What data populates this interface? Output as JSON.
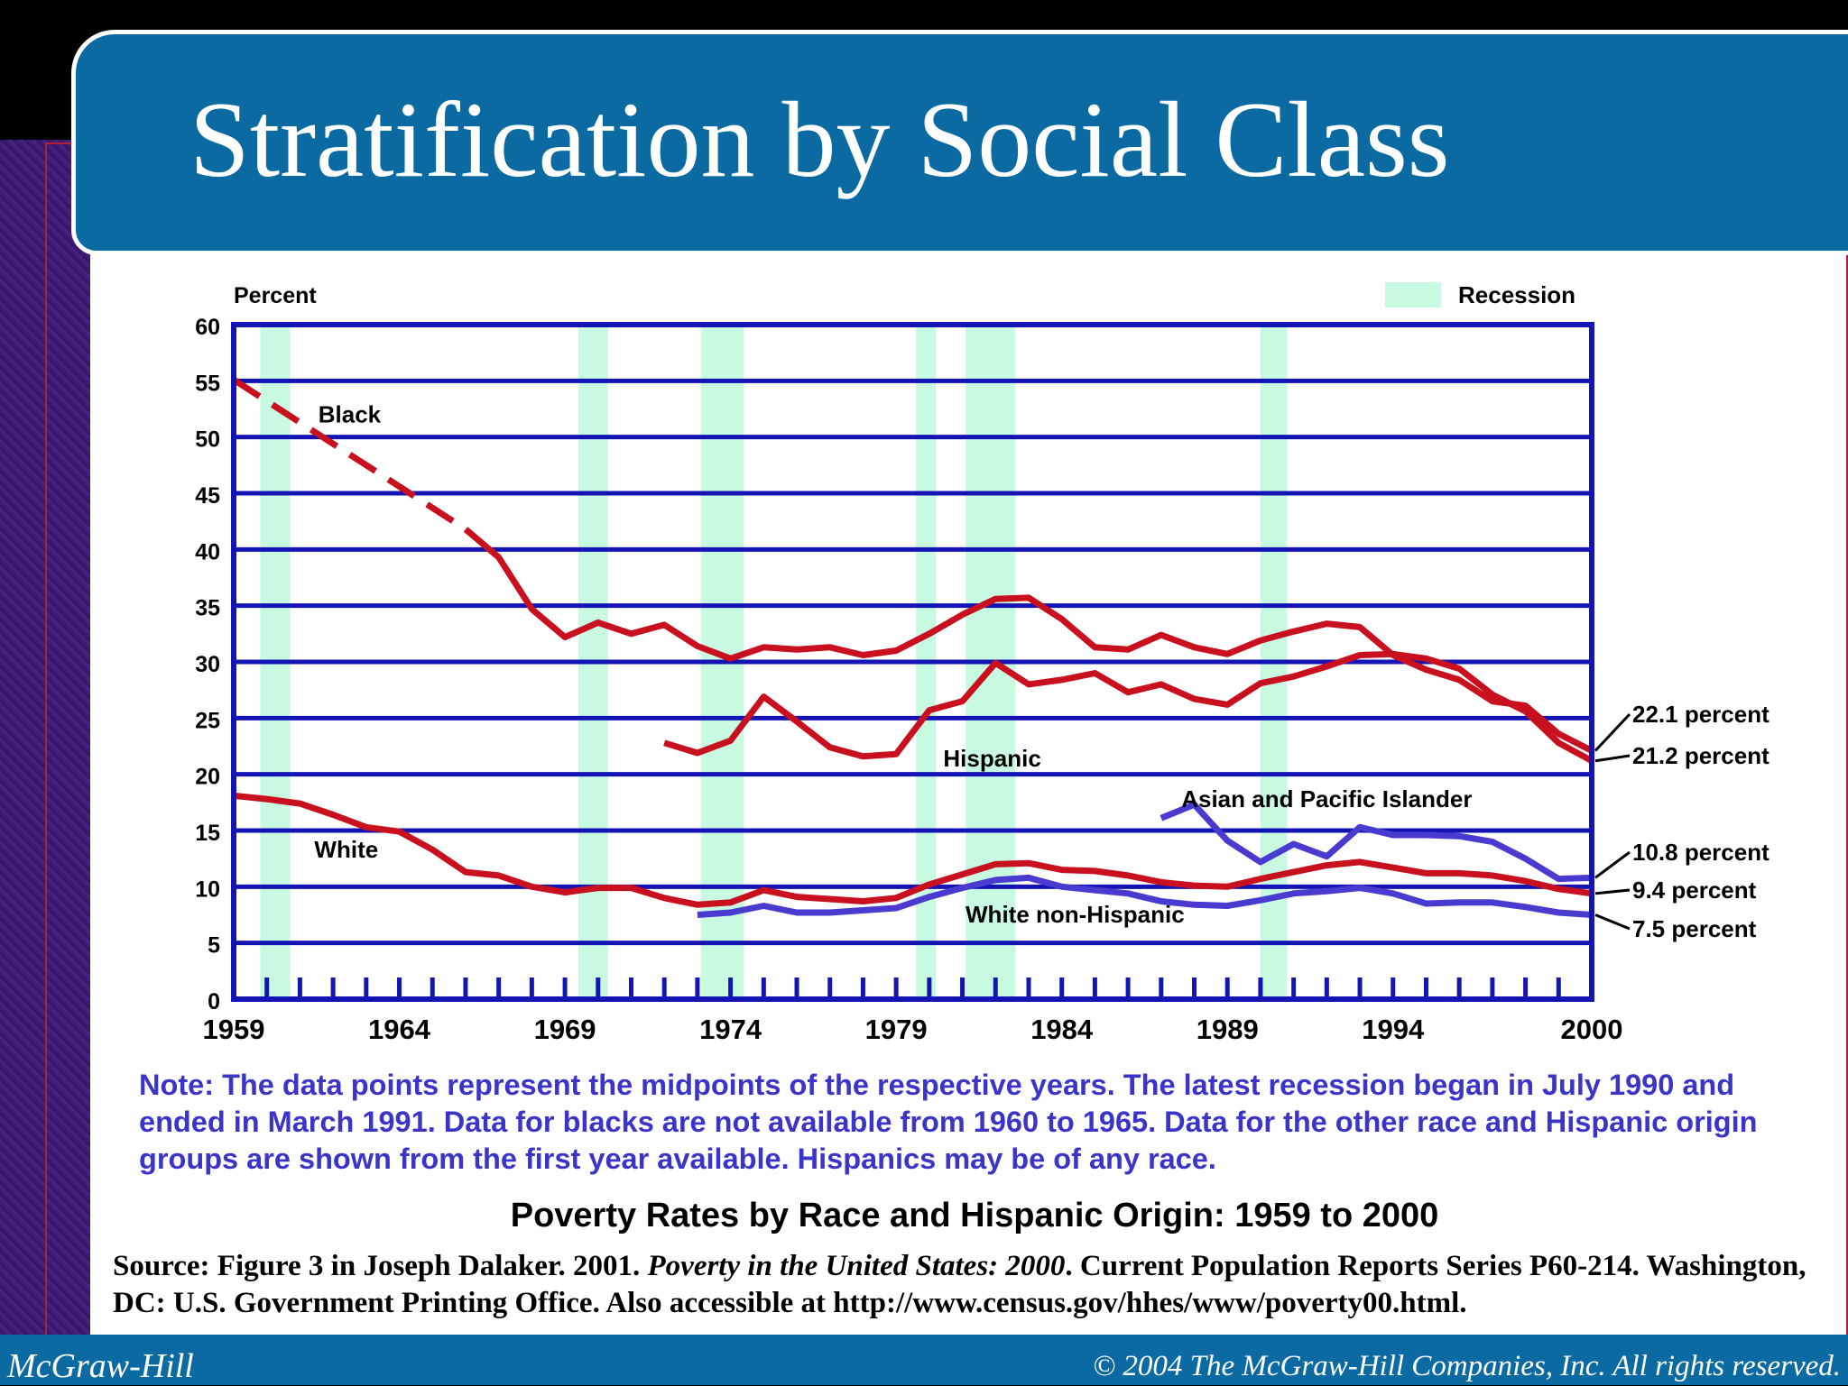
{
  "slide": {
    "title": "Stratification by Social Class",
    "footer_left": "McGraw-Hill",
    "footer_right": "© 2004 The McGraw-Hill Companies, Inc. All rights reserved."
  },
  "note": "Note: The data points represent the midpoints of the respective years. The latest recession began in July 1990 and ended in March 1991. Data for blacks are not available from 1960 to 1965. Data for the other race and Hispanic origin groups are shown from the first year available. Hispanics may be of any race.",
  "source": {
    "prefix": "Source: Figure 3 in Joseph Dalaker. 2001. ",
    "book": "Poverty in the United States: 2000",
    "suffix": ". Current Population Reports Series P60-214. Washington, DC: U.S. Government Printing Office. Also accessible at http://www.census.gov/hhes/www/poverty00.html."
  },
  "colors": {
    "axis": "#1414b4",
    "red_series": "#c8101e",
    "blue_series": "#4a3bd0",
    "recession": "#c8fae2",
    "title_bar": "#0a6aa1"
  },
  "chart_data": {
    "type": "line",
    "title": "Poverty Rates by Race and Hispanic Origin: 1959 to 2000",
    "ylabel": "Percent",
    "ylim": [
      0,
      60
    ],
    "xlim": [
      1959,
      2000
    ],
    "y_ticks": [
      0,
      5,
      10,
      15,
      20,
      25,
      30,
      35,
      40,
      45,
      50,
      55,
      60
    ],
    "x_tick_labels": [
      1959,
      1964,
      1969,
      1974,
      1979,
      1984,
      1989,
      1994,
      2000
    ],
    "grid": true,
    "legend": {
      "label": "Recession",
      "position": "top-right"
    },
    "recessions": [
      [
        1959.8,
        1960.7
      ],
      [
        1969.4,
        1970.3
      ],
      [
        1973.1,
        1974.4
      ],
      [
        1979.6,
        1980.2
      ],
      [
        1981.1,
        1982.6
      ],
      [
        1990.0,
        1990.8
      ]
    ],
    "series": [
      {
        "name": "Black",
        "color": "red",
        "segments": [
          {
            "style": "dashed",
            "points": [
              [
                1959,
                55.1
              ],
              [
                1966,
                41.8
              ]
            ]
          },
          {
            "style": "solid",
            "points": [
              [
                1966,
                41.8
              ],
              [
                1967,
                39.3
              ],
              [
                1968,
                34.7
              ],
              [
                1969,
                32.2
              ],
              [
                1970,
                33.5
              ],
              [
                1971,
                32.5
              ],
              [
                1972,
                33.3
              ],
              [
                1973,
                31.4
              ],
              [
                1974,
                30.3
              ],
              [
                1975,
                31.3
              ],
              [
                1976,
                31.1
              ],
              [
                1977,
                31.3
              ],
              [
                1978,
                30.6
              ],
              [
                1979,
                31.0
              ],
              [
                1980,
                32.5
              ],
              [
                1981,
                34.2
              ],
              [
                1982,
                35.6
              ],
              [
                1983,
                35.7
              ],
              [
                1984,
                33.8
              ],
              [
                1985,
                31.3
              ],
              [
                1986,
                31.1
              ],
              [
                1987,
                32.4
              ],
              [
                1988,
                31.3
              ],
              [
                1989,
                30.7
              ],
              [
                1990,
                31.9
              ],
              [
                1991,
                32.7
              ],
              [
                1992,
                33.4
              ],
              [
                1993,
                33.1
              ],
              [
                1994,
                30.6
              ],
              [
                1995,
                29.3
              ],
              [
                1996,
                28.4
              ],
              [
                1997,
                26.5
              ],
              [
                1998,
                26.1
              ],
              [
                1999,
                23.6
              ],
              [
                2000,
                22.1
              ]
            ]
          }
        ],
        "end_label": "22.1 percent"
      },
      {
        "name": "Hispanic",
        "color": "red",
        "segments": [
          {
            "style": "solid",
            "points": [
              [
                1972,
                22.8
              ],
              [
                1973,
                21.9
              ],
              [
                1974,
                23.0
              ],
              [
                1975,
                26.9
              ],
              [
                1976,
                24.7
              ],
              [
                1977,
                22.4
              ],
              [
                1978,
                21.6
              ],
              [
                1979,
                21.8
              ],
              [
                1980,
                25.7
              ],
              [
                1981,
                26.5
              ],
              [
                1982,
                29.9
              ],
              [
                1983,
                28.0
              ],
              [
                1984,
                28.4
              ],
              [
                1985,
                29.0
              ],
              [
                1986,
                27.3
              ],
              [
                1987,
                28.0
              ],
              [
                1988,
                26.7
              ],
              [
                1989,
                26.2
              ],
              [
                1990,
                28.1
              ],
              [
                1991,
                28.7
              ],
              [
                1992,
                29.6
              ],
              [
                1993,
                30.6
              ],
              [
                1994,
                30.7
              ],
              [
                1995,
                30.3
              ],
              [
                1996,
                29.4
              ],
              [
                1997,
                27.1
              ],
              [
                1998,
                25.6
              ],
              [
                1999,
                22.8
              ],
              [
                2000,
                21.2
              ]
            ]
          }
        ],
        "end_label": "21.2 percent"
      },
      {
        "name": "Asian and Pacific Islander",
        "color": "blue",
        "segments": [
          {
            "style": "solid",
            "points": [
              [
                1987,
                16.1
              ],
              [
                1988,
                17.3
              ],
              [
                1989,
                14.1
              ],
              [
                1990,
                12.2
              ],
              [
                1991,
                13.8
              ],
              [
                1992,
                12.7
              ],
              [
                1993,
                15.3
              ],
              [
                1994,
                14.6
              ],
              [
                1995,
                14.6
              ],
              [
                1996,
                14.5
              ],
              [
                1997,
                14.0
              ],
              [
                1998,
                12.5
              ],
              [
                1999,
                10.7
              ],
              [
                2000,
                10.8
              ]
            ]
          }
        ],
        "end_label": "10.8 percent"
      },
      {
        "name": "White",
        "color": "red",
        "segments": [
          {
            "style": "solid",
            "points": [
              [
                1959,
                18.1
              ],
              [
                1960,
                17.8
              ],
              [
                1961,
                17.4
              ],
              [
                1962,
                16.4
              ],
              [
                1963,
                15.3
              ],
              [
                1964,
                14.9
              ],
              [
                1965,
                13.3
              ],
              [
                1966,
                11.3
              ],
              [
                1967,
                11.0
              ],
              [
                1968,
                10.0
              ],
              [
                1969,
                9.5
              ],
              [
                1970,
                9.9
              ],
              [
                1971,
                9.9
              ],
              [
                1972,
                9.0
              ],
              [
                1973,
                8.4
              ],
              [
                1974,
                8.6
              ],
              [
                1975,
                9.7
              ],
              [
                1976,
                9.1
              ],
              [
                1977,
                8.9
              ],
              [
                1978,
                8.7
              ],
              [
                1979,
                9.0
              ],
              [
                1980,
                10.2
              ],
              [
                1981,
                11.1
              ],
              [
                1982,
                12.0
              ],
              [
                1983,
                12.1
              ],
              [
                1984,
                11.5
              ],
              [
                1985,
                11.4
              ],
              [
                1986,
                11.0
              ],
              [
                1987,
                10.4
              ],
              [
                1988,
                10.1
              ],
              [
                1989,
                10.0
              ],
              [
                1990,
                10.7
              ],
              [
                1991,
                11.3
              ],
              [
                1992,
                11.9
              ],
              [
                1993,
                12.2
              ],
              [
                1994,
                11.7
              ],
              [
                1995,
                11.2
              ],
              [
                1996,
                11.2
              ],
              [
                1997,
                11.0
              ],
              [
                1998,
                10.5
              ],
              [
                1999,
                9.8
              ],
              [
                2000,
                9.4
              ]
            ]
          }
        ],
        "end_label": "9.4 percent"
      },
      {
        "name": "White non-Hispanic",
        "color": "blue",
        "segments": [
          {
            "style": "solid",
            "points": [
              [
                1973,
                7.5
              ],
              [
                1974,
                7.7
              ],
              [
                1975,
                8.3
              ],
              [
                1976,
                7.7
              ],
              [
                1977,
                7.7
              ],
              [
                1978,
                7.9
              ],
              [
                1979,
                8.1
              ],
              [
                1980,
                9.1
              ],
              [
                1981,
                9.9
              ],
              [
                1982,
                10.6
              ],
              [
                1983,
                10.8
              ],
              [
                1984,
                10.0
              ],
              [
                1985,
                9.7
              ],
              [
                1986,
                9.4
              ],
              [
                1987,
                8.7
              ],
              [
                1988,
                8.4
              ],
              [
                1989,
                8.3
              ],
              [
                1990,
                8.8
              ],
              [
                1991,
                9.4
              ],
              [
                1992,
                9.6
              ],
              [
                1993,
                9.9
              ],
              [
                1994,
                9.4
              ],
              [
                1995,
                8.5
              ],
              [
                1996,
                8.6
              ],
              [
                1997,
                8.6
              ],
              [
                1998,
                8.2
              ],
              [
                1999,
                7.7
              ],
              [
                2000,
                7.5
              ]
            ]
          }
        ],
        "end_label": "7.5 percent"
      }
    ],
    "series_labels": [
      {
        "text": "Black",
        "x": 1962.5,
        "y": 51.3
      },
      {
        "text": "Hispanic",
        "x": 1981.9,
        "y": 20.7
      },
      {
        "text": "Asian and Pacific Islander",
        "x": 1992.0,
        "y": 17.1
      },
      {
        "text": "White",
        "x": 1962.4,
        "y": 12.6
      },
      {
        "text": "White non-Hispanic",
        "x": 1984.4,
        "y": 6.8
      }
    ]
  }
}
